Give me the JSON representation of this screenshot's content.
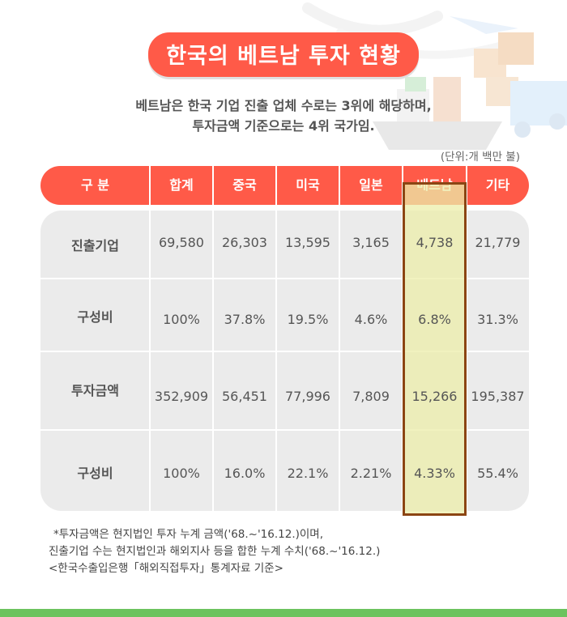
{
  "title": "한국의 베트남 투자 현황",
  "intro": [
    "베트남은 한국 기업 진출 업체 수로는 3위에 해당하며,",
    "투자금액 기준으로는 4위 국가임."
  ],
  "unit": "(단위:개 백만 불)",
  "table": {
    "headers": [
      "구  분",
      "합계",
      "중국",
      "미국",
      "일본",
      "베트남",
      "기타"
    ],
    "rows": [
      {
        "label": "진출기업",
        "values": [
          "69,580",
          "26,303",
          "13,595",
          "3,165",
          "4,738",
          "21,779"
        ]
      },
      {
        "label": "구성비",
        "values": [
          "100%",
          "37.8%",
          "19.5%",
          "4.6%",
          "6.8%",
          "31.3%"
        ]
      },
      {
        "label": "투자금액",
        "values": [
          "352,909",
          "56,451",
          "77,996",
          "7,809",
          "15,266",
          "195,387"
        ]
      },
      {
        "label": "구성비",
        "values": [
          "100%",
          "16.0%",
          "22.1%",
          "2.21%",
          "4.33%",
          "55.4%"
        ]
      }
    ]
  },
  "notes": [
    "*투자금액은 현지법인 투자 누계 금액('68.~'16.12.)이며,",
    "진출기업 수는 현지법인과 해외지사 등을 합한 누계 수치('68.~'16.12.)",
    "<한국수출입은행「해외직접투자」통계자료 기준>"
  ],
  "colors": {
    "accent": "#ff5a48",
    "highlight": "#eceeaa",
    "highlight_border": "#8b4513",
    "footer_bar": "#6cc35e"
  }
}
